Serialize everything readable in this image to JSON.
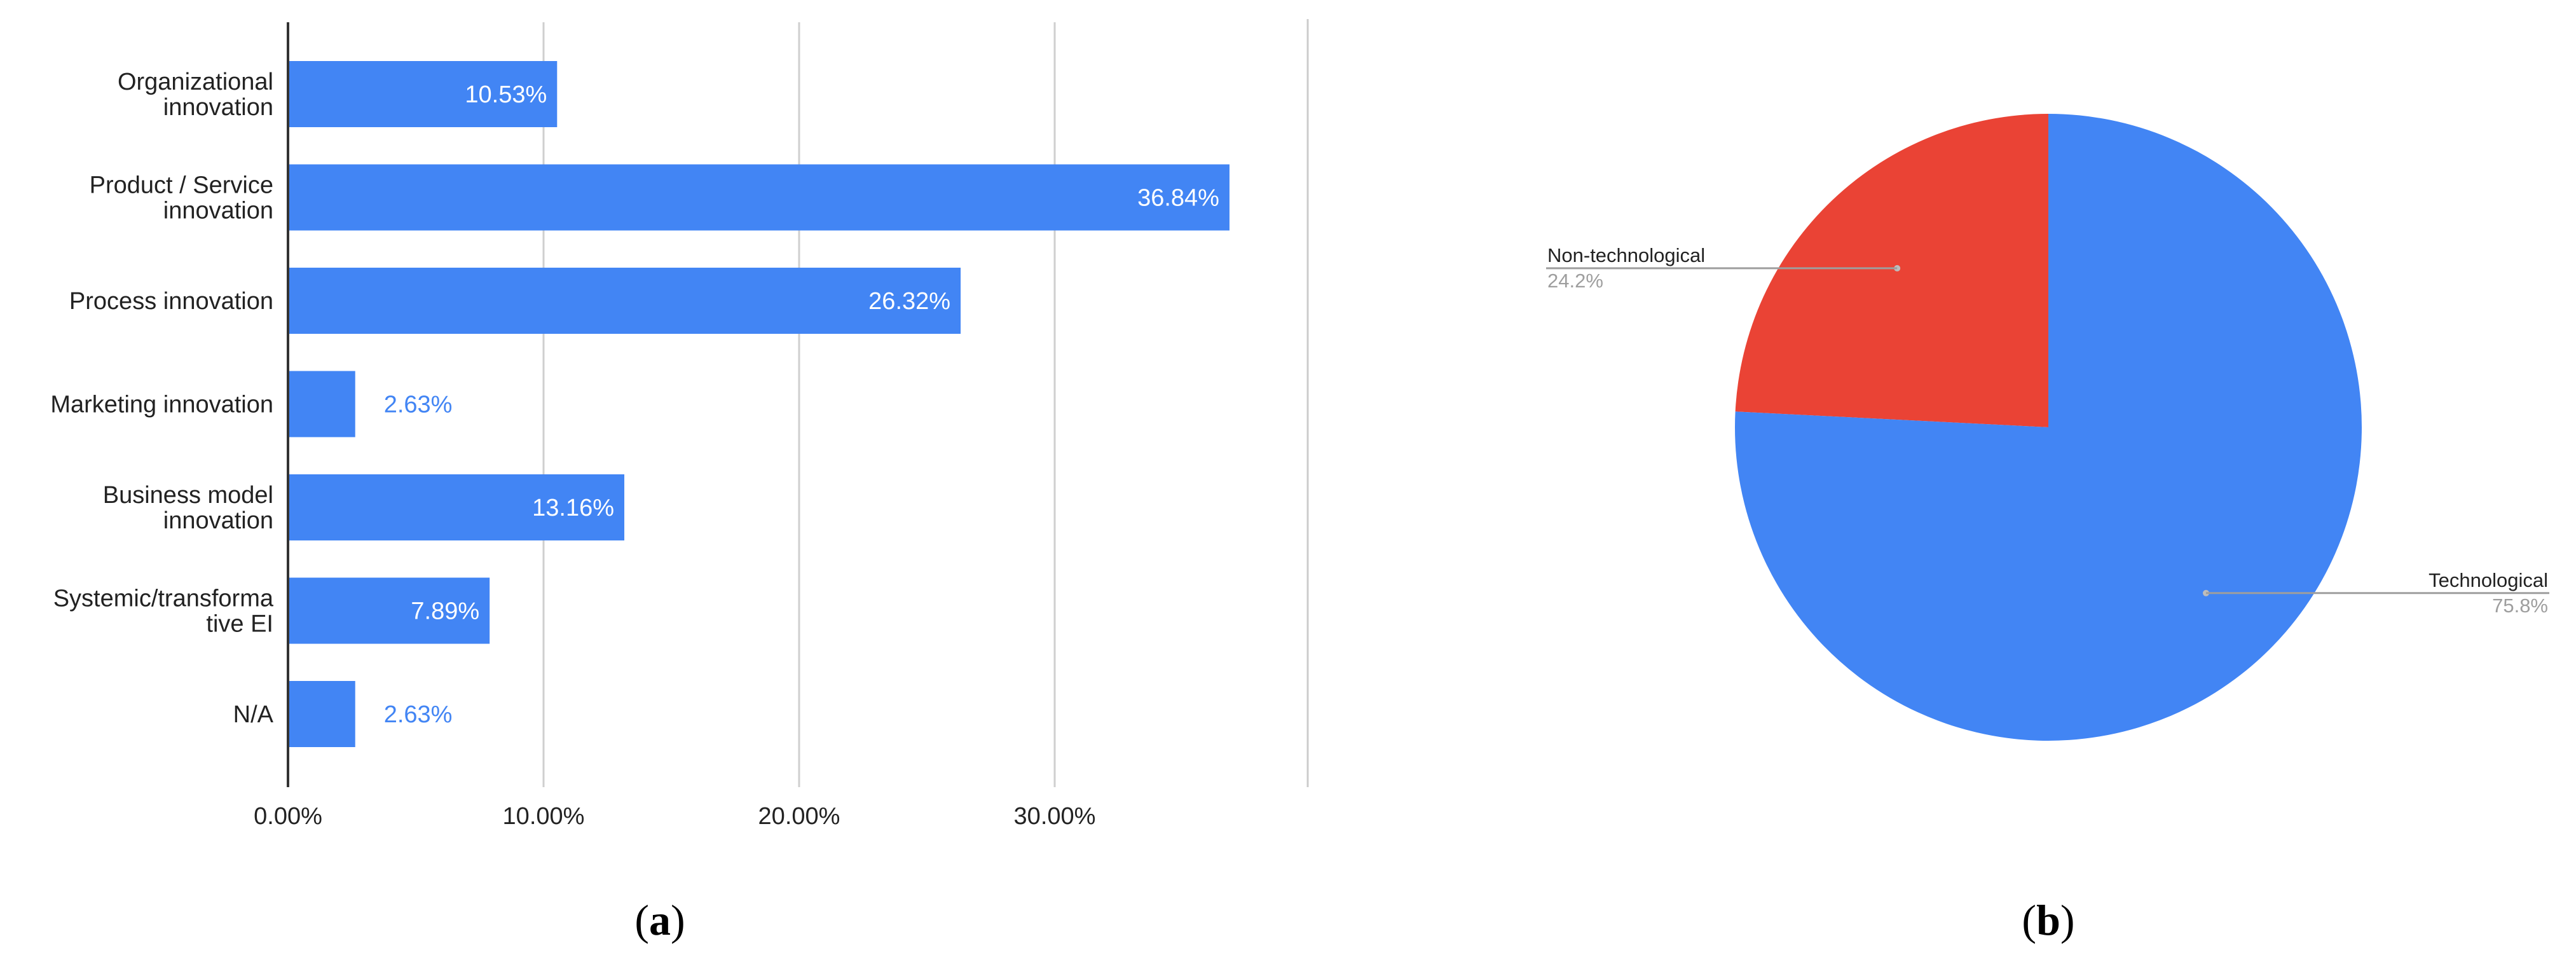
{
  "chart_data": [
    {
      "type": "bar",
      "orientation": "horizontal",
      "panel_label": "a",
      "categories": [
        [
          "Organizational",
          "innovation"
        ],
        [
          "Product / Service",
          "innovation"
        ],
        [
          "Process innovation"
        ],
        [
          "Marketing innovation"
        ],
        [
          "Business model",
          "innovation"
        ],
        [
          "Systemic/transforma",
          "tive EI"
        ],
        [
          "N/A"
        ]
      ],
      "values": [
        10.53,
        36.84,
        26.32,
        2.63,
        13.16,
        7.89,
        2.63
      ],
      "value_labels": [
        "10.53%",
        "36.84%",
        "26.32%",
        "2.63%",
        "13.16%",
        "7.89%",
        "2.63%"
      ],
      "x_ticks": [
        {
          "value": 0,
          "label": "0.00%"
        },
        {
          "value": 10,
          "label": "10.00%"
        },
        {
          "value": 20,
          "label": "20.00%"
        },
        {
          "value": 30,
          "label": "30.00%"
        }
      ],
      "xlim": [
        0,
        40
      ],
      "grid": true,
      "bar_color": "#4285f4",
      "title": "",
      "xlabel": "",
      "ylabel": ""
    },
    {
      "type": "pie",
      "panel_label": "b",
      "slices": [
        {
          "name": "Non-technological",
          "value": 24.2,
          "label": "24.2%",
          "color": "#ea4335"
        },
        {
          "name": "Technological",
          "value": 75.8,
          "label": "75.8%",
          "color": "#4285f4"
        }
      ],
      "start_angle_deg": 0,
      "direction": "counterclockwise-from-top",
      "title": ""
    }
  ],
  "captions": {
    "left": {
      "open": "(",
      "letter": "a",
      "close": ")"
    },
    "right": {
      "open": "(",
      "letter": "b",
      "close": ")"
    }
  }
}
